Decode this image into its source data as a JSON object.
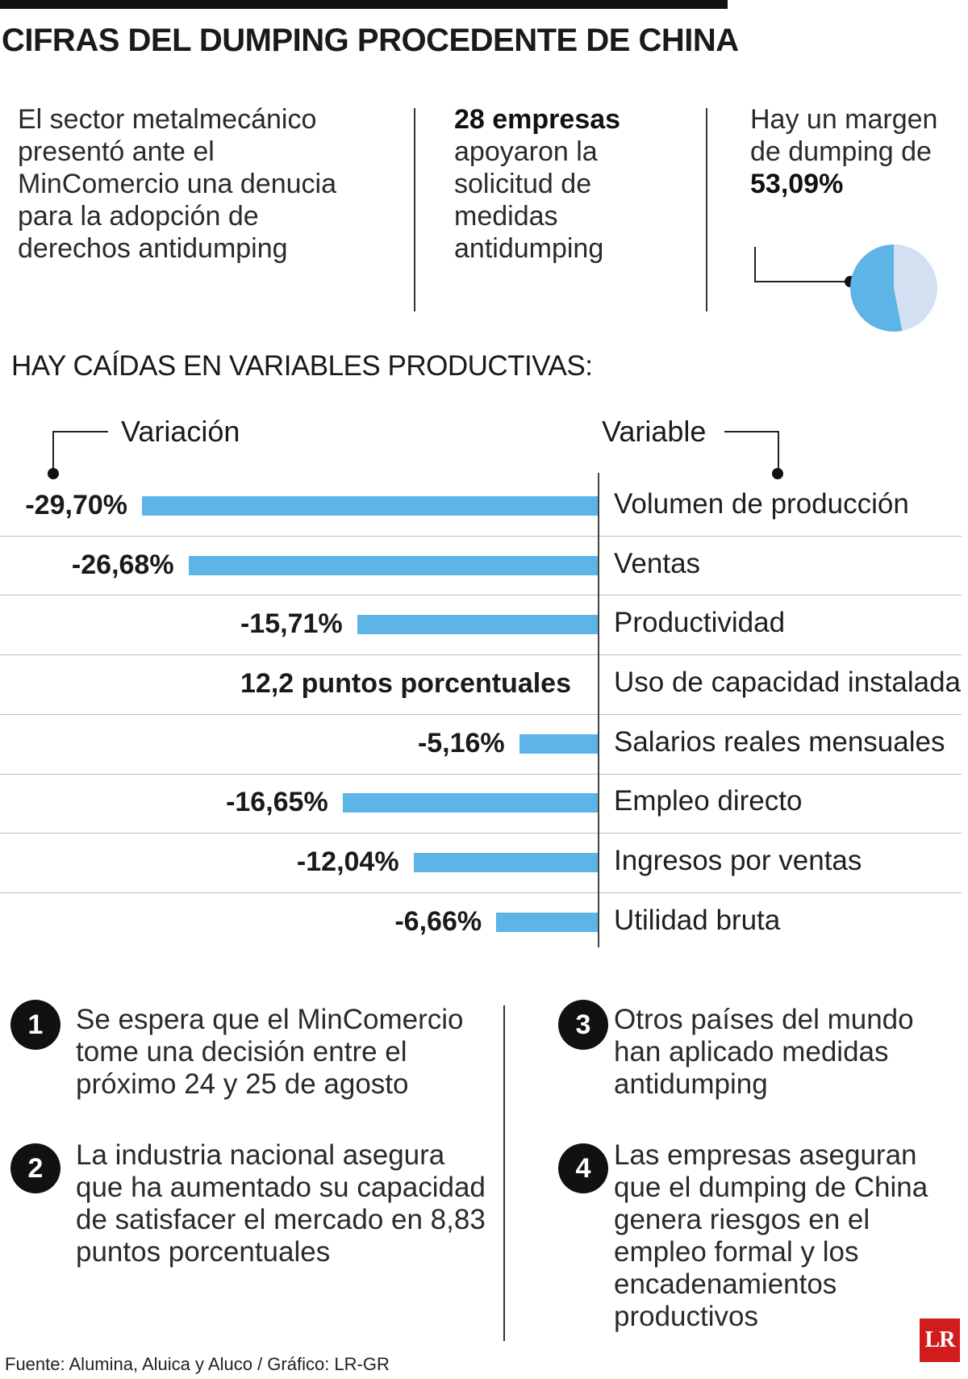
{
  "title": "CIFRAS DEL DUMPING PROCEDENTE DE CHINA",
  "intro": {
    "col1": "El sector metalmecánico presentó ante el MinComercio una denucia para la adopción de derechos antidumping",
    "col2_bold": "28 empresas",
    "col2_rest": "apoyaron la solicitud de medidas antidumping",
    "col3_text": "Hay un margen de dumping de",
    "col3_bold": "53,09%",
    "pie": {
      "value": 53.09,
      "colors": [
        "#5db4e6",
        "#d3e0f2"
      ]
    }
  },
  "subtitle": "HAY CAÍDAS EN VARIABLES PRODUCTIVAS:",
  "col_headers": {
    "left": "Variación",
    "right": "Variable"
  },
  "chart_data": {
    "type": "bar",
    "orientation": "horizontal",
    "title": "HAY CAÍDAS EN VARIABLES PRODUCTIVAS:",
    "categories": [
      "Volumen de producción",
      "Ventas",
      "Productividad",
      "Uso de capacidad instalada",
      "Salarios reales mensuales",
      "Empleo directo",
      "Ingresos por ventas",
      "Utilidad bruta"
    ],
    "values": [
      -29.7,
      -26.68,
      -15.71,
      null,
      -5.16,
      -16.65,
      -12.04,
      -6.66
    ],
    "labels": [
      "-29,70%",
      "-26,68%",
      "-15,71%",
      "12,2 puntos porcentuales",
      "-5,16%",
      "-16,65%",
      "-12,04%",
      "-6,66%"
    ],
    "xlim": [
      -29.7,
      0
    ],
    "bar_color": "#5db4e6"
  },
  "notes": [
    {
      "num": "1",
      "text": "Se espera que el MinComercio tome una decisión entre el próximo 24 y 25 de agosto"
    },
    {
      "num": "2",
      "text": "La industria nacional asegura que ha aumentado su capacidad de satisfacer el mercado en 8,83 puntos porcentuales"
    },
    {
      "num": "3",
      "text": "Otros países del mundo han aplicado medidas antidumping"
    },
    {
      "num": "4",
      "text": "Las empresas aseguran que el dumping de China genera riesgos en el empleo formal y los encadenamientos productivos"
    }
  ],
  "source": "Fuente: Alumina, Aluica y Aluco / Gráfico: LR-GR",
  "logo": "LR"
}
